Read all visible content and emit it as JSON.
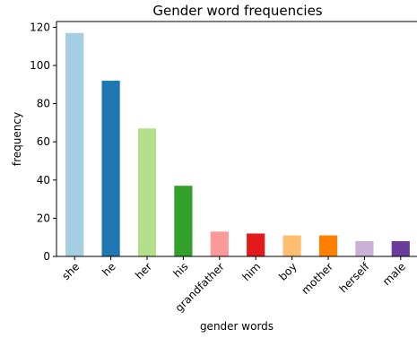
{
  "chart_data": {
    "type": "bar",
    "title": "Gender word frequencies",
    "xlabel": "gender words",
    "ylabel": "frequency",
    "categories": [
      "she",
      "he",
      "her",
      "his",
      "grandfather",
      "him",
      "boy",
      "mother",
      "herself",
      "male"
    ],
    "values": [
      117,
      92,
      67,
      37,
      13,
      12,
      11,
      11,
      8,
      8
    ],
    "colors": [
      "#a6cee3",
      "#1f78b4",
      "#b2df8a",
      "#33a02c",
      "#fb9a99",
      "#e31a1c",
      "#fdbf6f",
      "#ff7f00",
      "#cab2d6",
      "#6a3d9a"
    ],
    "ylim": [
      0,
      123
    ],
    "yticks": [
      0,
      20,
      40,
      60,
      80,
      100,
      120
    ],
    "grid": false,
    "legend": false
  }
}
